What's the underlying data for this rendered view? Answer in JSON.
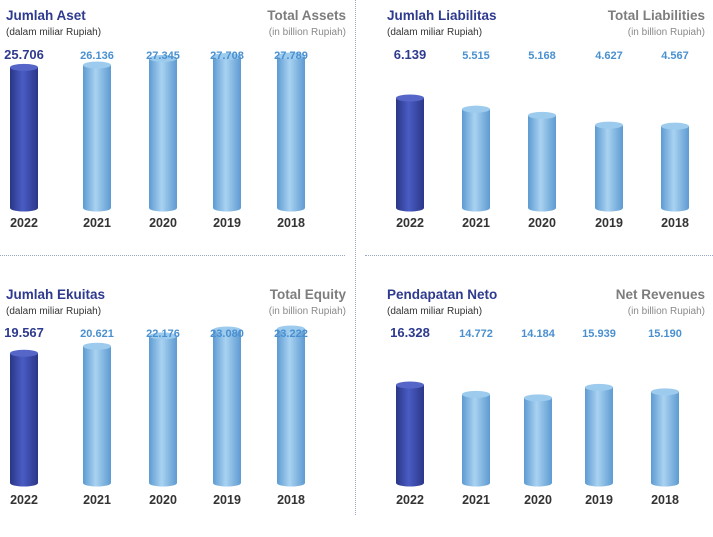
{
  "colors": {
    "highlight_value": "#2e3a8e",
    "other_value": "#4a90d0",
    "cylinder_dark": "#3a4aa8",
    "cylinder_light": "#7fb6e2",
    "year_text": "#333333",
    "title_id": "#2e3a8e",
    "title_en": "#7d7d7d"
  },
  "chart_data": [
    {
      "type": "bar",
      "title": "Jumlah Aset",
      "subtitle": "(dalam miliar Rupiah)",
      "title_en": "Total Assets",
      "subtitle_en": "(in billion Rupiah)",
      "categories": [
        "2022",
        "2021",
        "2020",
        "2019",
        "2018"
      ],
      "values": [
        25706,
        26136,
        27345,
        27708,
        27789
      ],
      "value_labels": [
        "25.706",
        "26.136",
        "27.345",
        "27.708",
        "27.789"
      ],
      "highlight": "2022"
    },
    {
      "type": "bar",
      "title": "Jumlah Liabilitas",
      "subtitle": "(dalam miliar Rupiah)",
      "title_en": "Total Liabilities",
      "subtitle_en": "(in billion Rupiah)",
      "categories": [
        "2022",
        "2021",
        "2020",
        "2019",
        "2018"
      ],
      "values": [
        6139,
        5515,
        5168,
        4627,
        4567
      ],
      "value_labels": [
        "6.139",
        "5.515",
        "5.168",
        "4.627",
        "4.567"
      ],
      "highlight": "2022"
    },
    {
      "type": "bar",
      "title": "Jumlah Ekuitas",
      "subtitle": "(dalam miliar Rupiah)",
      "title_en": "Total Equity",
      "subtitle_en": "(in billion Rupiah)",
      "categories": [
        "2022",
        "2021",
        "2020",
        "2019",
        "2018"
      ],
      "values": [
        19567,
        20621,
        22176,
        23080,
        23222
      ],
      "value_labels": [
        "19.567",
        "20.621",
        "22.176",
        "23.080",
        "23.222"
      ],
      "highlight": "2022"
    },
    {
      "type": "bar",
      "title": "Pendapatan Neto",
      "subtitle": "(dalam miliar Rupiah)",
      "title_en": "Net Revenues",
      "subtitle_en": "(in billion Rupiah)",
      "categories": [
        "2022",
        "2021",
        "2020",
        "2019",
        "2018"
      ],
      "values": [
        16328,
        14772,
        14184,
        15939,
        15190
      ],
      "value_labels": [
        "16.328",
        "14.772",
        "14.184",
        "15.939",
        "15.190"
      ],
      "highlight": "2022"
    }
  ]
}
